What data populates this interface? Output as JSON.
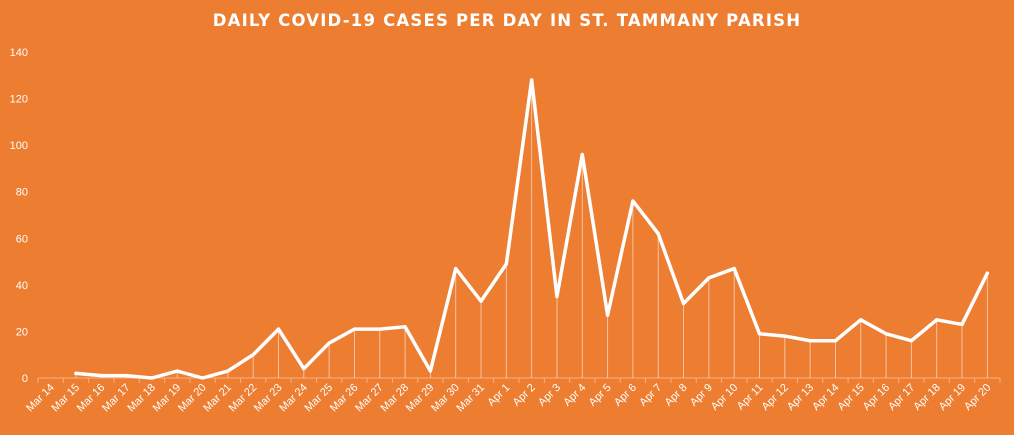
{
  "chart_data": {
    "type": "line",
    "title": "DAILY COVID-19 CASES PER DAY IN ST. TAMMANY  PARISH",
    "xlabel": "",
    "ylabel": "",
    "ylim": [
      0,
      140
    ],
    "yticks": [
      0,
      20,
      40,
      60,
      80,
      100,
      120,
      140
    ],
    "grid": false,
    "legend": "none",
    "drop_lines": true,
    "categories": [
      "Mar 14",
      "Mar 15",
      "Mar 16",
      "Mar 17",
      "Mar 18",
      "Mar 19",
      "Mar 20",
      "Mar 21",
      "Mar 22",
      "Mar 23",
      "Mar 24",
      "Mar 25",
      "Mar 26",
      "Mar 27",
      "Mar 28",
      "Mar 29",
      "Mar 30",
      "Mar 31",
      "Apr 1",
      "Apr 2",
      "Apr 3",
      "Apr 4",
      "Apr 5",
      "Apr 6",
      "Apr 7",
      "Apr 8",
      "Apr 9",
      "Apr 10",
      "Apr 11",
      "Apr 12",
      "Apr 13",
      "Apr 14",
      "Apr 15",
      "Apr 16",
      "Apr 17",
      "Apr 18",
      "Apr 19",
      "Apr 20"
    ],
    "series": [
      {
        "values": [
          null,
          2,
          1,
          1,
          0,
          3,
          0,
          3,
          10,
          21,
          4,
          15,
          21,
          21,
          22,
          3,
          47,
          33,
          49,
          128,
          35,
          96,
          27,
          76,
          62,
          32,
          43,
          47,
          19,
          18,
          16,
          16,
          25,
          19,
          16,
          25,
          23,
          45
        ]
      }
    ],
    "colors": {
      "background": "#ED7D31",
      "line": "#FFFFFF",
      "axis": "#F6B183"
    }
  }
}
